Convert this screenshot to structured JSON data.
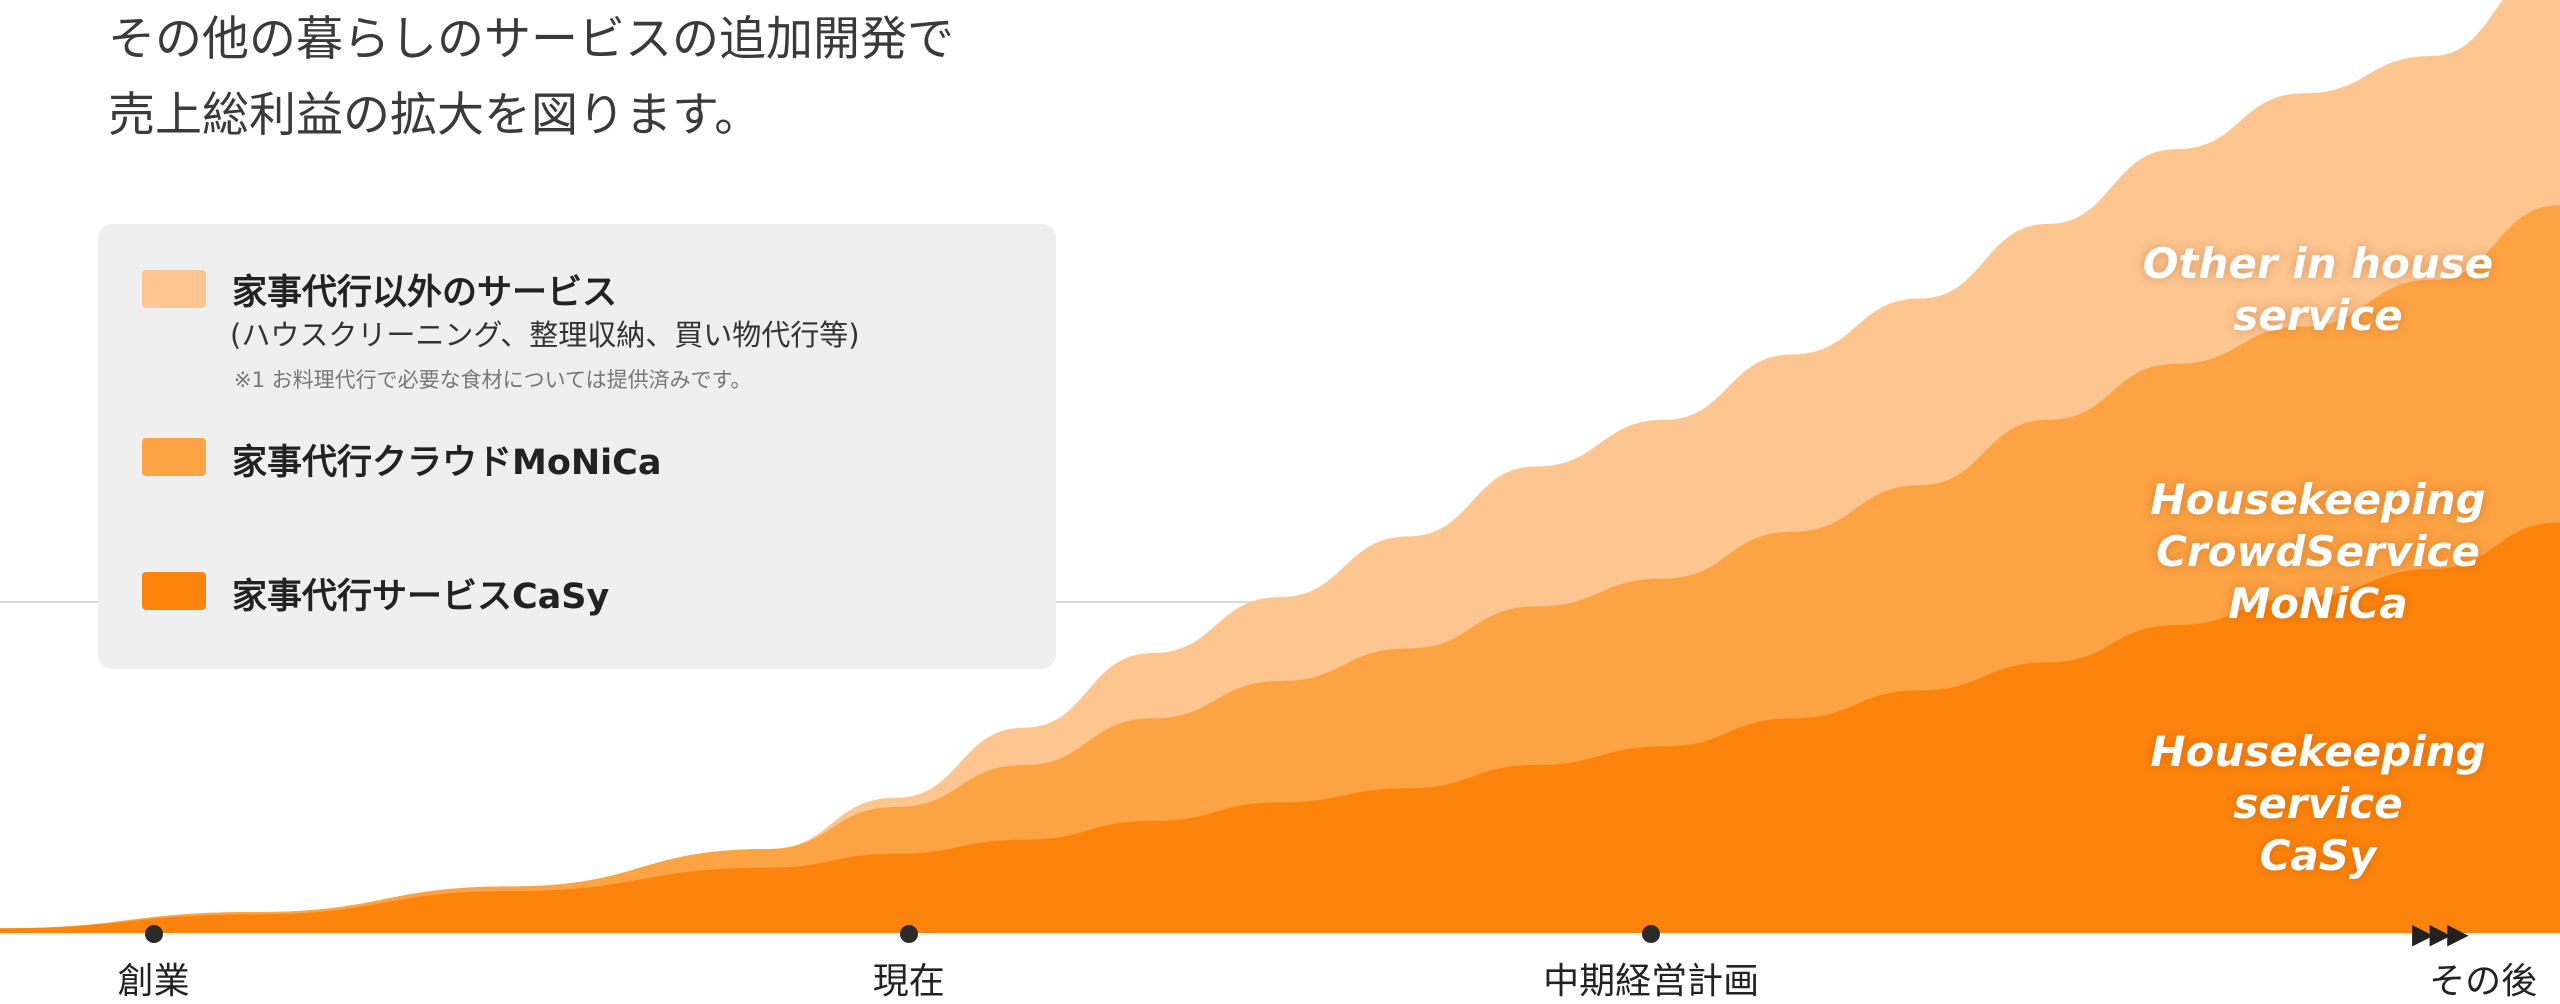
{
  "headline": {
    "line1": "その他の暮らしのサービスの追加開発で",
    "line2": "売上総利益の拡大を図ります。"
  },
  "legend": {
    "items": [
      {
        "label": "家事代行以外のサービス",
        "sub": "(ハウスクリーニング、整理収納、買い物代行等)",
        "note": "※1 お料理代行で必要な食材については提供済みです。",
        "color": "#fdc590"
      },
      {
        "label": "家事代行クラウドMoNiCa",
        "color": "#fca344"
      },
      {
        "label": "家事代行サービスCaSy",
        "color": "#fc840c"
      }
    ]
  },
  "band_labels": {
    "other": [
      "Other in house",
      "service"
    ],
    "monica": [
      "Housekeeping",
      "CrowdService",
      "MoNiCa"
    ],
    "casy": [
      "Housekeeping",
      "service",
      "CaSy"
    ]
  },
  "chart_data": {
    "type": "area",
    "stacked": true,
    "x_ticks": [
      "創業",
      "現在",
      "中期経営計画",
      "その後"
    ],
    "x_tick_positions": [
      0.06,
      0.355,
      0.645,
      0.97
    ],
    "x_end_marker": "▶▶▶",
    "series": [
      {
        "name": "家事代行サービスCaSy",
        "color": "#fc840c",
        "points": [
          [
            0,
            0.005
          ],
          [
            0.1,
            0.02
          ],
          [
            0.2,
            0.045
          ],
          [
            0.3,
            0.07
          ],
          [
            0.4,
            0.1
          ],
          [
            0.5,
            0.14
          ],
          [
            0.55,
            0.155
          ],
          [
            0.6,
            0.18
          ],
          [
            0.65,
            0.2
          ],
          [
            0.7,
            0.23
          ],
          [
            0.75,
            0.26
          ],
          [
            0.8,
            0.29
          ],
          [
            0.85,
            0.33
          ],
          [
            0.9,
            0.36
          ],
          [
            0.95,
            0.39
          ],
          [
            1.0,
            0.44
          ]
        ]
      },
      {
        "name": "家事代行クラウドMoNiCa",
        "color": "#fca344",
        "points": [
          [
            0,
            0
          ],
          [
            0.2,
            0.005
          ],
          [
            0.3,
            0.02
          ],
          [
            0.35,
            0.05
          ],
          [
            0.4,
            0.08
          ],
          [
            0.45,
            0.11
          ],
          [
            0.5,
            0.13
          ],
          [
            0.55,
            0.15
          ],
          [
            0.6,
            0.17
          ],
          [
            0.65,
            0.18
          ],
          [
            0.7,
            0.2
          ],
          [
            0.75,
            0.22
          ],
          [
            0.8,
            0.26
          ],
          [
            0.85,
            0.28
          ],
          [
            0.9,
            0.29
          ],
          [
            0.95,
            0.31
          ],
          [
            1.0,
            0.34
          ]
        ]
      },
      {
        "name": "家事代行以外のサービス",
        "color": "#fdc590",
        "points": [
          [
            0,
            0
          ],
          [
            0.3,
            0
          ],
          [
            0.35,
            0.01
          ],
          [
            0.4,
            0.04
          ],
          [
            0.45,
            0.07
          ],
          [
            0.5,
            0.09
          ],
          [
            0.55,
            0.12
          ],
          [
            0.6,
            0.15
          ],
          [
            0.65,
            0.17
          ],
          [
            0.7,
            0.19
          ],
          [
            0.75,
            0.2
          ],
          [
            0.8,
            0.21
          ],
          [
            0.85,
            0.23
          ],
          [
            0.9,
            0.25
          ],
          [
            0.95,
            0.24
          ],
          [
            1.0,
            0.26
          ]
        ]
      }
    ]
  }
}
